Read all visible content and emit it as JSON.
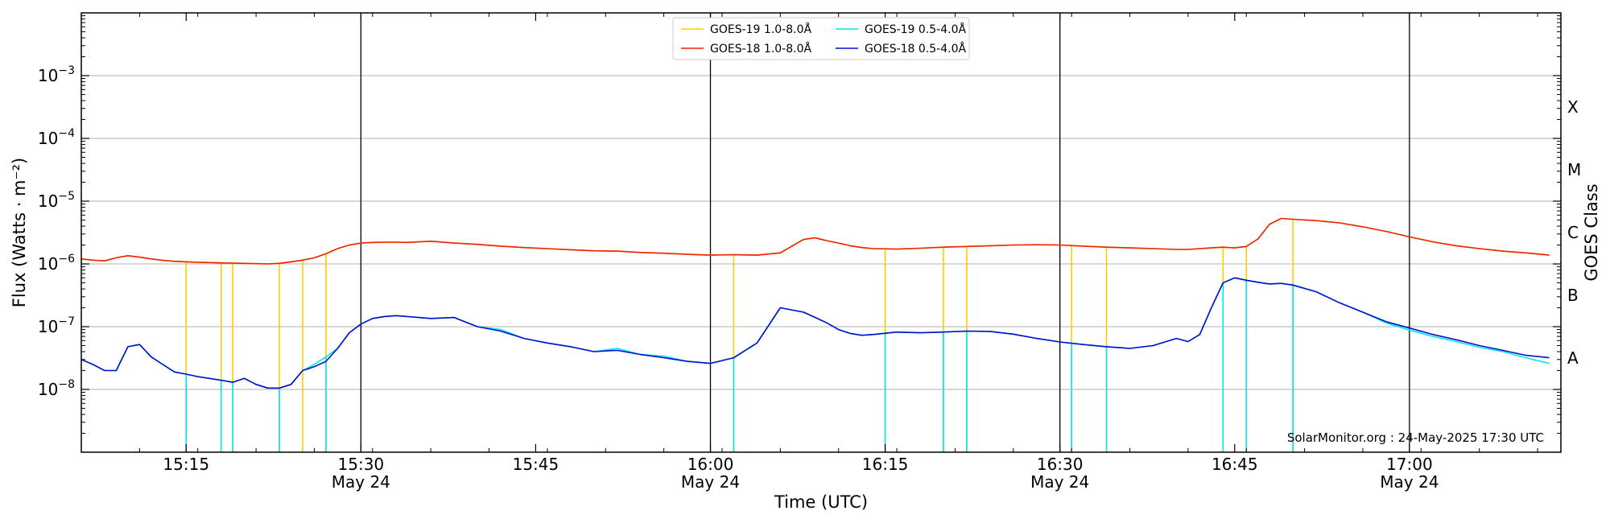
{
  "chart_data": {
    "type": "line",
    "xlabel": "Time (UTC)",
    "ylabel": "Flux (Watts · m⁻²)",
    "ylabel_right": "GOES Class",
    "credit": "SolarMonitor.org : 24-May-2025 17:30 UTC",
    "x_range_minutes": [
      0,
      127
    ],
    "x_zero_time": "15:06",
    "ylim_log10": [
      -9,
      -2
    ],
    "grid": true,
    "scale": "log",
    "x_ticks": [
      {
        "minute": 9,
        "label": "15:15",
        "sublabel": ""
      },
      {
        "minute": 24,
        "label": "15:30",
        "sublabel": "May 24",
        "major": true
      },
      {
        "minute": 39,
        "label": "15:45",
        "sublabel": ""
      },
      {
        "minute": 54,
        "label": "16:00",
        "sublabel": "May 24",
        "major": true
      },
      {
        "minute": 69,
        "label": "16:15",
        "sublabel": ""
      },
      {
        "minute": 84,
        "label": "16:30",
        "sublabel": "May 24",
        "major": true
      },
      {
        "minute": 99,
        "label": "16:45",
        "sublabel": ""
      },
      {
        "minute": 114,
        "label": "17:00",
        "sublabel": "May 24",
        "major": true
      }
    ],
    "y_ticks": [
      {
        "exp": -8,
        "label": "10",
        "sup": "−8"
      },
      {
        "exp": -7,
        "label": "10",
        "sup": "−7"
      },
      {
        "exp": -6,
        "label": "10",
        "sup": "−6"
      },
      {
        "exp": -5,
        "label": "10",
        "sup": "−5"
      },
      {
        "exp": -4,
        "label": "10",
        "sup": "−4"
      },
      {
        "exp": -3,
        "label": "10",
        "sup": "−3"
      }
    ],
    "classes": [
      {
        "label": "A",
        "exp": -7.5
      },
      {
        "label": "B",
        "exp": -6.5
      },
      {
        "label": "C",
        "exp": -5.5
      },
      {
        "label": "M",
        "exp": -4.5
      },
      {
        "label": "X",
        "exp": -3.5
      }
    ],
    "legend": {
      "placement": "top-center",
      "entries": [
        {
          "label": "GOES-19 1.0-8.0Å",
          "color": "#ffcc00"
        },
        {
          "label": "GOES-19 0.5-4.0Å",
          "color": "#00e5ee"
        },
        {
          "label": "GOES-18 1.0-8.0Å",
          "color": "#ee2200"
        },
        {
          "label": "GOES-18 0.5-4.0Å",
          "color": "#0011cc"
        }
      ]
    },
    "series": [
      {
        "name": "GOES-18 1.0-8.0Å",
        "color": "#ee2200",
        "x": [
          0,
          1,
          2,
          3,
          4,
          5,
          6,
          7,
          8,
          9,
          10,
          11,
          12,
          13,
          14,
          15,
          16,
          17,
          18,
          19,
          20,
          21,
          22,
          23,
          24,
          25,
          26,
          27,
          28,
          30,
          32,
          34,
          36,
          38,
          40,
          42,
          44,
          46,
          48,
          50,
          52,
          54,
          56,
          58,
          60,
          62,
          63,
          64,
          65,
          66,
          67,
          68,
          70,
          72,
          74,
          76,
          78,
          80,
          82,
          84,
          86,
          88,
          90,
          92,
          94,
          95,
          96,
          97,
          98,
          99,
          100,
          101,
          102,
          103,
          104,
          106,
          108,
          110,
          112,
          114,
          116,
          118,
          120,
          122,
          124,
          126
        ],
        "y": [
          1.2e-06,
          1.15e-06,
          1.12e-06,
          1.25e-06,
          1.35e-06,
          1.28e-06,
          1.2e-06,
          1.14e-06,
          1.1e-06,
          1.08e-06,
          1.06e-06,
          1.05e-06,
          1.04e-06,
          1.03e-06,
          1.02e-06,
          1.01e-06,
          1e-06,
          1.02e-06,
          1.08e-06,
          1.15e-06,
          1.25e-06,
          1.45e-06,
          1.75e-06,
          2e-06,
          2.15e-06,
          2.2e-06,
          2.22e-06,
          2.22e-06,
          2.2e-06,
          2.3e-06,
          2.15e-06,
          2.05e-06,
          1.92e-06,
          1.82e-06,
          1.75e-06,
          1.68e-06,
          1.62e-06,
          1.6e-06,
          1.52e-06,
          1.48e-06,
          1.42e-06,
          1.38e-06,
          1.4e-06,
          1.38e-06,
          1.5e-06,
          2.45e-06,
          2.6e-06,
          2.35e-06,
          2.15e-06,
          1.95e-06,
          1.82e-06,
          1.75e-06,
          1.72e-06,
          1.78e-06,
          1.85e-06,
          1.9e-06,
          1.95e-06,
          2e-06,
          2.02e-06,
          2e-06,
          1.92e-06,
          1.85e-06,
          1.8e-06,
          1.75e-06,
          1.7e-06,
          1.7e-06,
          1.75e-06,
          1.8e-06,
          1.85e-06,
          1.8e-06,
          1.9e-06,
          2.5e-06,
          4.3e-06,
          5.3e-06,
          5.15e-06,
          4.9e-06,
          4.5e-06,
          3.9e-06,
          3.3e-06,
          2.7e-06,
          2.25e-06,
          1.95e-06,
          1.75e-06,
          1.6e-06,
          1.5e-06,
          1.38e-06
        ]
      },
      {
        "name": "GOES-18 0.5-4.0Å",
        "color": "#0011cc",
        "x": [
          0,
          1,
          2,
          3,
          4,
          5,
          6,
          7,
          8,
          9,
          10,
          11,
          12,
          13,
          14,
          15,
          16,
          17,
          18,
          19,
          20,
          21,
          22,
          23,
          24,
          25,
          26,
          27,
          28,
          30,
          32,
          34,
          36,
          38,
          40,
          42,
          44,
          46,
          48,
          50,
          52,
          54,
          56,
          58,
          60,
          62,
          63,
          64,
          65,
          66,
          67,
          68,
          70,
          72,
          74,
          76,
          78,
          80,
          82,
          84,
          86,
          88,
          90,
          92,
          94,
          95,
          96,
          97,
          98,
          99,
          100,
          101,
          102,
          103,
          104,
          106,
          108,
          110,
          112,
          114,
          116,
          118,
          120,
          122,
          124,
          126
        ],
        "y": [
          3e-08,
          2.5e-08,
          2e-08,
          2e-08,
          4.8e-08,
          5.2e-08,
          3.3e-08,
          2.5e-08,
          1.9e-08,
          1.75e-08,
          1.6e-08,
          1.5e-08,
          1.4e-08,
          1.3e-08,
          1.5e-08,
          1.2e-08,
          1.05e-08,
          1.05e-08,
          1.2e-08,
          2e-08,
          2.3e-08,
          2.8e-08,
          4.5e-08,
          8e-08,
          1.1e-07,
          1.35e-07,
          1.45e-07,
          1.5e-07,
          1.45e-07,
          1.35e-07,
          1.4e-07,
          1e-07,
          8.5e-08,
          6.5e-08,
          5.5e-08,
          4.8e-08,
          4e-08,
          4.2e-08,
          3.6e-08,
          3.2e-08,
          2.8e-08,
          2.6e-08,
          3.2e-08,
          5.5e-08,
          2e-07,
          1.7e-07,
          1.4e-07,
          1.15e-07,
          9e-08,
          7.8e-08,
          7.3e-08,
          7.5e-08,
          8.2e-08,
          8e-08,
          8.2e-08,
          8.5e-08,
          8.4e-08,
          7.6e-08,
          6.5e-08,
          5.7e-08,
          5.2e-08,
          4.8e-08,
          4.5e-08,
          5e-08,
          6.5e-08,
          5.8e-08,
          7.5e-08,
          2e-07,
          5e-07,
          6e-07,
          5.5e-07,
          5.1e-07,
          4.8e-07,
          4.9e-07,
          4.6e-07,
          3.6e-07,
          2.4e-07,
          1.7e-07,
          1.2e-07,
          9.5e-08,
          7.5e-08,
          6.2e-08,
          5e-08,
          4.2e-08,
          3.5e-08,
          3.2e-08
        ]
      },
      {
        "name": "GOES-19 1.0-8.0Å",
        "color": "#ffcc00",
        "x": [
          0,
          1,
          2,
          3,
          4,
          5,
          6,
          7,
          8,
          9,
          10,
          11,
          12,
          13,
          14,
          15,
          16,
          17,
          18,
          19,
          20,
          21,
          22,
          23,
          24,
          25,
          26,
          27,
          28,
          30,
          32,
          34,
          36,
          38,
          40,
          42,
          44,
          46,
          48,
          50,
          52,
          54,
          56,
          58,
          60,
          62,
          63,
          64,
          65,
          66,
          67,
          68,
          70,
          72,
          74,
          76,
          78,
          80,
          82,
          84,
          86,
          88,
          90,
          92,
          94,
          95,
          96,
          97,
          98,
          99,
          100,
          101,
          102,
          103,
          104,
          106,
          108,
          110,
          112,
          114,
          116,
          118,
          120,
          122,
          124,
          126
        ],
        "y": [
          1.2e-06,
          1.15e-06,
          1.12e-06,
          1.25e-06,
          1.35e-06,
          1.28e-06,
          1.2e-06,
          1.14e-06,
          1.1e-06,
          1.08e-06,
          1.06e-06,
          1.05e-06,
          1.04e-06,
          1.03e-06,
          1.02e-06,
          1.01e-06,
          1e-06,
          1.02e-06,
          1.08e-06,
          1.15e-06,
          1.25e-06,
          1.45e-06,
          1.75e-06,
          2e-06,
          2.15e-06,
          2.2e-06,
          2.22e-06,
          2.22e-06,
          2.2e-06,
          2.3e-06,
          2.15e-06,
          2.05e-06,
          1.92e-06,
          1.82e-06,
          1.75e-06,
          1.68e-06,
          1.62e-06,
          1.6e-06,
          1.52e-06,
          1.48e-06,
          1.42e-06,
          1.38e-06,
          1.4e-06,
          1.38e-06,
          1.5e-06,
          2.45e-06,
          2.6e-06,
          2.35e-06,
          2.15e-06,
          1.95e-06,
          1.82e-06,
          1.75e-06,
          1.72e-06,
          1.78e-06,
          1.85e-06,
          1.9e-06,
          1.95e-06,
          2e-06,
          2.02e-06,
          2e-06,
          1.92e-06,
          1.85e-06,
          1.8e-06,
          1.75e-06,
          1.7e-06,
          1.7e-06,
          1.75e-06,
          1.8e-06,
          1.85e-06,
          1.8e-06,
          1.9e-06,
          2.5e-06,
          4.3e-06,
          5.3e-06,
          5.15e-06,
          4.9e-06,
          4.5e-06,
          3.9e-06,
          3.3e-06,
          2.7e-06,
          2.25e-06,
          1.95e-06,
          1.75e-06,
          1.6e-06,
          1.5e-06,
          1.38e-06
        ],
        "dropouts": [
          9,
          12,
          13,
          17,
          19,
          21,
          56,
          69,
          74,
          76,
          85,
          88,
          98,
          100,
          104
        ]
      },
      {
        "name": "GOES-19 0.5-4.0Å",
        "color": "#00e5ee",
        "x": [
          0,
          1,
          2,
          3,
          4,
          5,
          6,
          7,
          8,
          9,
          10,
          11,
          12,
          13,
          14,
          15,
          16,
          17,
          18,
          19,
          20,
          21,
          22,
          23,
          24,
          25,
          26,
          27,
          28,
          30,
          32,
          34,
          36,
          38,
          40,
          42,
          44,
          46,
          48,
          50,
          52,
          54,
          56,
          58,
          60,
          62,
          63,
          64,
          65,
          66,
          67,
          68,
          70,
          72,
          74,
          76,
          78,
          80,
          82,
          84,
          86,
          88,
          90,
          92,
          94,
          95,
          96,
          97,
          98,
          99,
          100,
          101,
          102,
          103,
          104,
          106,
          108,
          110,
          112,
          114,
          116,
          118,
          120,
          122,
          124,
          126
        ],
        "y": [
          3e-08,
          2.5e-08,
          2e-08,
          2e-08,
          4.8e-08,
          5.2e-08,
          3.3e-08,
          2.5e-08,
          1.9e-08,
          1.75e-08,
          1.6e-08,
          1.5e-08,
          1.4e-08,
          1.3e-08,
          1.5e-08,
          1.2e-08,
          1.05e-08,
          1.05e-08,
          1.2e-08,
          2e-08,
          2.5e-08,
          3.3e-08,
          4.5e-08,
          8e-08,
          1.1e-07,
          1.35e-07,
          1.45e-07,
          1.5e-07,
          1.45e-07,
          1.35e-07,
          1.4e-07,
          1e-07,
          9e-08,
          6.5e-08,
          5.5e-08,
          4.8e-08,
          4e-08,
          4.5e-08,
          3.6e-08,
          3.4e-08,
          2.8e-08,
          2.6e-08,
          3.2e-08,
          5.5e-08,
          2e-07,
          1.7e-07,
          1.4e-07,
          1.15e-07,
          9e-08,
          7.8e-08,
          7.3e-08,
          7.5e-08,
          8.2e-08,
          8e-08,
          8.2e-08,
          8.5e-08,
          8.4e-08,
          7.6e-08,
          6.5e-08,
          5.7e-08,
          5.2e-08,
          4.8e-08,
          4.5e-08,
          5e-08,
          6.5e-08,
          5.8e-08,
          7.5e-08,
          2e-07,
          5e-07,
          6e-07,
          5.5e-07,
          5.1e-07,
          4.8e-07,
          4.9e-07,
          4.6e-07,
          3.6e-07,
          2.4e-07,
          1.7e-07,
          1.15e-07,
          8.8e-08,
          7e-08,
          5.8e-08,
          4.7e-08,
          4e-08,
          3.2e-08,
          2.6e-08
        ],
        "dropouts": [
          9,
          12,
          13,
          17,
          21,
          56,
          69,
          74,
          76,
          85,
          88,
          98,
          100,
          104
        ]
      }
    ]
  }
}
